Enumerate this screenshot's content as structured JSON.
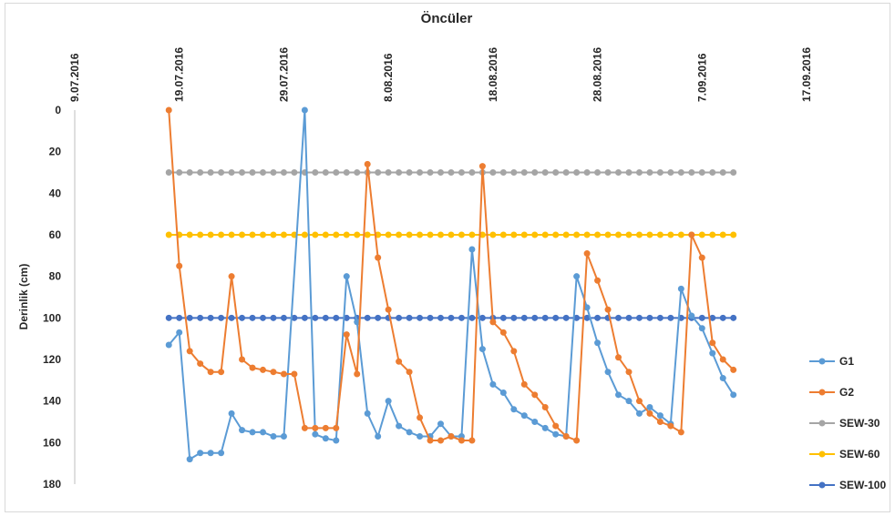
{
  "chart_data": {
    "type": "line",
    "title": "Öncüler",
    "ylabel": "Derinlik (cm)",
    "xlabel": "",
    "x_axis_position": "top",
    "y_inverted": true,
    "ylim": [
      0,
      180
    ],
    "y_ticks": [
      0,
      20,
      40,
      60,
      80,
      100,
      120,
      140,
      160,
      180
    ],
    "y_tick_labels": [
      "0",
      "20",
      "40",
      "60",
      "80",
      "100",
      "120",
      "140",
      "160",
      "180"
    ],
    "xlim": [
      "2016-07-09",
      "2016-09-17"
    ],
    "x_ticks": [
      "2016-07-09",
      "2016-07-19",
      "2016-07-29",
      "2016-08-08",
      "2016-08-18",
      "2016-08-28",
      "2016-09-07",
      "2016-09-17"
    ],
    "x_tick_labels": [
      "9.07.2016",
      "19.07.2016",
      "29.07.2016",
      "8.08.2016",
      "18.08.2016",
      "28.08.2016",
      "7.09.2016",
      "17.09.2016"
    ],
    "grid": false,
    "legend_position": "right",
    "series": [
      {
        "name": "G1",
        "color": "#5b9bd5",
        "points": [
          [
            "2016-07-18",
            113
          ],
          [
            "2016-07-19",
            107
          ],
          [
            "2016-07-20",
            168
          ],
          [
            "2016-07-21",
            165
          ],
          [
            "2016-07-22",
            165
          ],
          [
            "2016-07-23",
            165
          ],
          [
            "2016-07-24",
            146
          ],
          [
            "2016-07-25",
            154
          ],
          [
            "2016-07-26",
            155
          ],
          [
            "2016-07-27",
            155
          ],
          [
            "2016-07-28",
            157
          ],
          [
            "2016-07-29",
            157
          ],
          [
            "2016-07-31",
            0
          ],
          [
            "2016-08-01",
            156
          ],
          [
            "2016-08-02",
            158
          ],
          [
            "2016-08-03",
            159
          ],
          [
            "2016-08-04",
            80
          ],
          [
            "2016-08-05",
            102
          ],
          [
            "2016-08-06",
            146
          ],
          [
            "2016-08-07",
            157
          ],
          [
            "2016-08-08",
            140
          ],
          [
            "2016-08-09",
            152
          ],
          [
            "2016-08-10",
            155
          ],
          [
            "2016-08-11",
            157
          ],
          [
            "2016-08-12",
            157
          ],
          [
            "2016-08-13",
            151
          ],
          [
            "2016-08-14",
            157
          ],
          [
            "2016-08-15",
            157
          ],
          [
            "2016-08-16",
            67
          ],
          [
            "2016-08-17",
            115
          ],
          [
            "2016-08-18",
            132
          ],
          [
            "2016-08-19",
            136
          ],
          [
            "2016-08-20",
            144
          ],
          [
            "2016-08-21",
            147
          ],
          [
            "2016-08-22",
            150
          ],
          [
            "2016-08-23",
            153
          ],
          [
            "2016-08-24",
            156
          ],
          [
            "2016-08-25",
            157
          ],
          [
            "2016-08-26",
            80
          ],
          [
            "2016-08-27",
            95
          ],
          [
            "2016-08-28",
            112
          ],
          [
            "2016-08-29",
            126
          ],
          [
            "2016-08-30",
            137
          ],
          [
            "2016-08-31",
            140
          ],
          [
            "2016-09-01",
            146
          ],
          [
            "2016-09-02",
            143
          ],
          [
            "2016-09-03",
            147
          ],
          [
            "2016-09-04",
            151
          ],
          [
            "2016-09-05",
            86
          ],
          [
            "2016-09-06",
            99
          ],
          [
            "2016-09-07",
            105
          ],
          [
            "2016-09-08",
            117
          ],
          [
            "2016-09-09",
            129
          ],
          [
            "2016-09-10",
            137
          ]
        ]
      },
      {
        "name": "G2",
        "color": "#ed7d31",
        "points": [
          [
            "2016-07-18",
            0
          ],
          [
            "2016-07-19",
            75
          ],
          [
            "2016-07-20",
            116
          ],
          [
            "2016-07-21",
            122
          ],
          [
            "2016-07-22",
            126
          ],
          [
            "2016-07-23",
            126
          ],
          [
            "2016-07-24",
            80
          ],
          [
            "2016-07-25",
            120
          ],
          [
            "2016-07-26",
            124
          ],
          [
            "2016-07-27",
            125
          ],
          [
            "2016-07-28",
            126
          ],
          [
            "2016-07-29",
            127
          ],
          [
            "2016-07-30",
            127
          ],
          [
            "2016-07-31",
            153
          ],
          [
            "2016-08-01",
            153
          ],
          [
            "2016-08-02",
            153
          ],
          [
            "2016-08-03",
            153
          ],
          [
            "2016-08-04",
            108
          ],
          [
            "2016-08-05",
            127
          ],
          [
            "2016-08-06",
            26
          ],
          [
            "2016-08-07",
            71
          ],
          [
            "2016-08-08",
            96
          ],
          [
            "2016-08-09",
            121
          ],
          [
            "2016-08-10",
            126
          ],
          [
            "2016-08-11",
            148
          ],
          [
            "2016-08-12",
            159
          ],
          [
            "2016-08-13",
            159
          ],
          [
            "2016-08-14",
            157
          ],
          [
            "2016-08-15",
            159
          ],
          [
            "2016-08-16",
            159
          ],
          [
            "2016-08-17",
            27
          ],
          [
            "2016-08-18",
            102
          ],
          [
            "2016-08-19",
            107
          ],
          [
            "2016-08-20",
            116
          ],
          [
            "2016-08-21",
            132
          ],
          [
            "2016-08-22",
            137
          ],
          [
            "2016-08-23",
            143
          ],
          [
            "2016-08-24",
            152
          ],
          [
            "2016-08-25",
            157
          ],
          [
            "2016-08-26",
            159
          ],
          [
            "2016-08-27",
            69
          ],
          [
            "2016-08-28",
            82
          ],
          [
            "2016-08-29",
            96
          ],
          [
            "2016-08-30",
            119
          ],
          [
            "2016-08-31",
            126
          ],
          [
            "2016-09-01",
            140
          ],
          [
            "2016-09-02",
            146
          ],
          [
            "2016-09-03",
            150
          ],
          [
            "2016-09-04",
            152
          ],
          [
            "2016-09-05",
            155
          ],
          [
            "2016-09-06",
            60
          ],
          [
            "2016-09-07",
            71
          ],
          [
            "2016-09-08",
            112
          ],
          [
            "2016-09-09",
            120
          ],
          [
            "2016-09-10",
            125
          ]
        ]
      },
      {
        "name": "SEW-30",
        "color": "#a5a5a5",
        "constant": 30,
        "range": [
          "2016-07-18",
          "2016-09-10"
        ]
      },
      {
        "name": "SEW-60",
        "color": "#ffc000",
        "constant": 60,
        "range": [
          "2016-07-18",
          "2016-09-10"
        ]
      },
      {
        "name": "SEW-100",
        "color": "#4472c4",
        "constant": 100,
        "range": [
          "2016-07-18",
          "2016-09-10"
        ]
      }
    ]
  }
}
